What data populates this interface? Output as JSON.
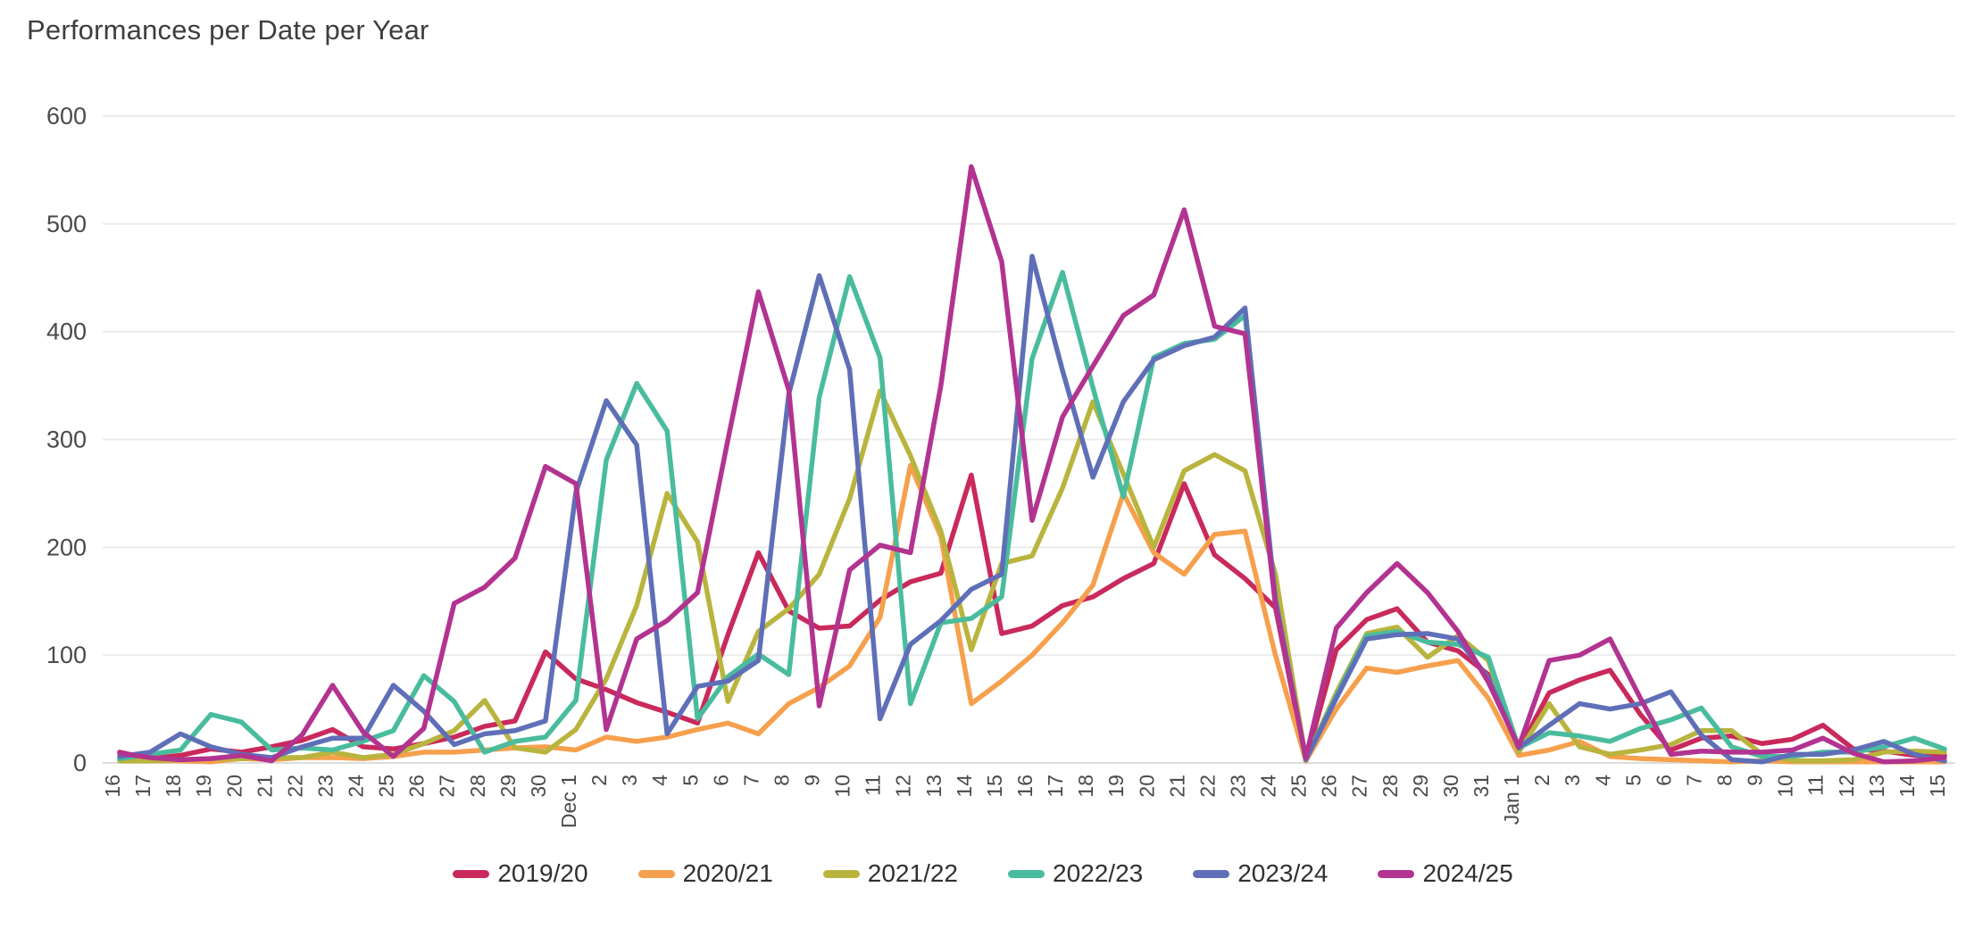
{
  "header": {
    "title": "Performances per Date per Year"
  },
  "chart_data": {
    "type": "line",
    "title": "Performances per Date per Year",
    "xlabel": "",
    "ylabel": "",
    "ylim": [
      0,
      600
    ],
    "y_ticks": [
      0,
      100,
      200,
      300,
      400,
      500,
      600
    ],
    "grid": "horizontal",
    "legend_position": "bottom",
    "categories": [
      "16",
      "17",
      "18",
      "19",
      "20",
      "21",
      "22",
      "23",
      "24",
      "25",
      "26",
      "27",
      "28",
      "29",
      "30",
      "Dec 1",
      "2",
      "3",
      "4",
      "5",
      "6",
      "7",
      "8",
      "9",
      "10",
      "11",
      "12",
      "13",
      "14",
      "15",
      "16",
      "17",
      "18",
      "19",
      "20",
      "21",
      "22",
      "23",
      "24",
      "25",
      "26",
      "27",
      "28",
      "29",
      "30",
      "31",
      "Jan 1",
      "2",
      "3",
      "4",
      "5",
      "6",
      "7",
      "8",
      "9",
      "10",
      "11",
      "12",
      "13",
      "14",
      "15"
    ],
    "series": [
      {
        "name": "2019/20",
        "color": "#c9295b",
        "values": [
          10,
          4,
          7,
          13,
          10,
          15,
          21,
          31,
          15,
          13,
          18,
          24,
          34,
          39,
          103,
          78,
          68,
          56,
          47,
          37,
          119,
          195,
          141,
          125,
          127,
          151,
          168,
          176,
          267,
          120,
          127,
          146,
          154,
          171,
          185,
          259,
          193,
          171,
          144,
          2,
          105,
          133,
          143,
          112,
          104,
          82,
          12,
          65,
          77,
          86,
          45,
          12,
          23,
          25,
          18,
          22,
          35,
          13,
          11,
          7,
          7
        ]
      },
      {
        "name": "2020/21",
        "color": "#f6a04d",
        "values": [
          2,
          2,
          2,
          1,
          4,
          3,
          5,
          5,
          4,
          6,
          10,
          10,
          12,
          14,
          15,
          12,
          24,
          20,
          24,
          31,
          37,
          27,
          55,
          70,
          90,
          135,
          276,
          210,
          55,
          76,
          100,
          130,
          165,
          250,
          195,
          175,
          212,
          215,
          100,
          2,
          50,
          88,
          84,
          90,
          95,
          60,
          7,
          12,
          20,
          6,
          4,
          3,
          2,
          1,
          2,
          1,
          1,
          1,
          1,
          1,
          1
        ]
      },
      {
        "name": "2021/22",
        "color": "#b9b43e",
        "values": [
          2,
          2,
          3,
          4,
          4,
          5,
          5,
          10,
          5,
          8,
          18,
          30,
          58,
          14,
          10,
          31,
          78,
          146,
          250,
          205,
          57,
          122,
          143,
          175,
          245,
          345,
          285,
          215,
          105,
          185,
          192,
          255,
          335,
          268,
          200,
          271,
          286,
          271,
          175,
          3,
          65,
          120,
          126,
          98,
          118,
          95,
          10,
          55,
          15,
          8,
          12,
          17,
          30,
          30,
          8,
          2,
          2,
          3,
          10,
          11,
          10
        ]
      },
      {
        "name": "2022/23",
        "color": "#4abc9e",
        "values": [
          4,
          8,
          12,
          45,
          38,
          12,
          14,
          12,
          20,
          30,
          81,
          57,
          10,
          20,
          24,
          58,
          281,
          352,
          308,
          41,
          80,
          101,
          82,
          339,
          451,
          376,
          55,
          130,
          134,
          154,
          375,
          455,
          348,
          247,
          376,
          389,
          393,
          415,
          150,
          4,
          62,
          118,
          122,
          112,
          110,
          98,
          14,
          28,
          25,
          20,
          32,
          40,
          51,
          15,
          6,
          6,
          10,
          10,
          15,
          23,
          13
        ]
      },
      {
        "name": "2023/24",
        "color": "#5f6fb7",
        "values": [
          6,
          10,
          27,
          15,
          8,
          5,
          15,
          23,
          23,
          72,
          48,
          17,
          27,
          30,
          39,
          251,
          336,
          295,
          27,
          71,
          76,
          95,
          342,
          452,
          365,
          41,
          110,
          132,
          161,
          175,
          470,
          364,
          265,
          335,
          374,
          387,
          395,
          422,
          152,
          3,
          60,
          115,
          119,
          120,
          115,
          79,
          14,
          35,
          55,
          50,
          55,
          66,
          26,
          3,
          1,
          8,
          8,
          12,
          20,
          8,
          2
        ]
      },
      {
        "name": "2024/25",
        "color": "#b23390",
        "values": [
          9,
          5,
          3,
          4,
          7,
          2,
          26,
          72,
          29,
          6,
          32,
          148,
          163,
          190,
          275,
          259,
          31,
          115,
          132,
          158,
          300,
          437,
          346,
          53,
          179,
          202,
          195,
          350,
          553,
          465,
          225,
          321,
          368,
          415,
          434,
          513,
          405,
          398,
          146,
          5,
          125,
          158,
          185,
          158,
          122,
          75,
          15,
          95,
          100,
          115,
          60,
          8,
          11,
          10,
          10,
          12,
          23,
          9,
          1,
          2,
          5
        ]
      }
    ]
  }
}
